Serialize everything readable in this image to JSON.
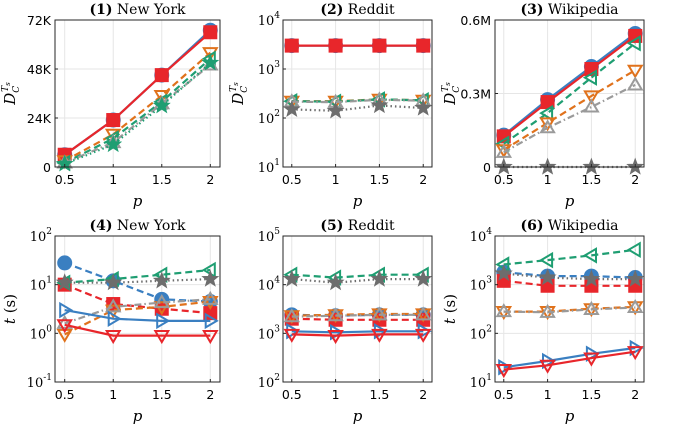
{
  "xlabel": "p",
  "colors": {
    "blue": "#3a7fc1",
    "red": "#e8262b",
    "orange": "#e0721c",
    "green": "#1f9e72",
    "gray": "#9a9a9a",
    "dark": "#6d6d6d"
  },
  "panels": [
    {
      "number": "(1)",
      "name": "New York",
      "ylabel": "D_C^{T_s}",
      "yscale": "linear",
      "ylim": [
        0,
        72000
      ],
      "yticks": [
        "0",
        "24K",
        "48K",
        "72K"
      ],
      "ytick_values": [
        0,
        24000,
        48000,
        72000
      ],
      "xticks": [
        "0.5",
        "1",
        "1.5",
        "2"
      ],
      "chart_data": {
        "type": "line",
        "x": [
          0.5,
          1,
          1.5,
          2
        ],
        "series": [
          {
            "values": [
              6000,
              23000,
              45000,
              67000
            ],
            "color": "blue",
            "marker": "circle",
            "dash": "solid"
          },
          {
            "values": [
              6000,
              23000,
              45000,
              66000
            ],
            "color": "red",
            "marker": "square",
            "dash": "solid"
          },
          {
            "values": [
              3000,
              16000,
              35000,
              56000
            ],
            "color": "orange",
            "marker": "tri-down",
            "dash": "dashed"
          },
          {
            "values": [
              2000,
              14000,
              32000,
              53000
            ],
            "color": "green",
            "marker": "tri-left",
            "dash": "dashed"
          },
          {
            "values": [
              2000,
              12000,
              31000,
              50000
            ],
            "color": "gray",
            "marker": "tri-up",
            "dash": "dashdot"
          },
          {
            "values": [
              1500,
              11000,
              30000,
              51000
            ],
            "color": "green",
            "marker": "star",
            "dash": "dotted"
          }
        ]
      }
    },
    {
      "number": "(2)",
      "name": "Reddit",
      "ylabel": "D_C^{T_s}",
      "yscale": "log",
      "ylim": [
        10,
        10000
      ],
      "yticks": [
        "10",
        "10",
        "10",
        "10"
      ],
      "ytick_exps": [
        "1",
        "2",
        "3",
        "4"
      ],
      "ytick_values": [
        10,
        100,
        1000,
        10000
      ],
      "xticks": [
        "0.5",
        "1",
        "1.5",
        "2"
      ],
      "chart_data": {
        "type": "line",
        "x": [
          0.5,
          1,
          1.5,
          2
        ],
        "series": [
          {
            "values": [
              3000,
              3000,
              3000,
              3000
            ],
            "color": "blue",
            "marker": "circle",
            "dash": "solid"
          },
          {
            "values": [
              3000,
              3000,
              3000,
              3000
            ],
            "color": "red",
            "marker": "square",
            "dash": "solid"
          },
          {
            "values": [
              220,
              220,
              240,
              230
            ],
            "color": "orange",
            "marker": "tri-down",
            "dash": "dashed"
          },
          {
            "values": [
              220,
              215,
              240,
              230
            ],
            "color": "green",
            "marker": "tri-left",
            "dash": "dashed"
          },
          {
            "values": [
              215,
              210,
              235,
              225
            ],
            "color": "gray",
            "marker": "tri-up",
            "dash": "dashdot"
          },
          {
            "values": [
              150,
              140,
              180,
              160
            ],
            "color": "dark",
            "marker": "star",
            "dash": "dotted"
          }
        ]
      }
    },
    {
      "number": "(3)",
      "name": "Wikipedia",
      "ylabel": "D_C^{T_s}",
      "yscale": "linear",
      "ylim": [
        0,
        600000
      ],
      "yticks": [
        "0",
        "0.3M",
        "0.6M"
      ],
      "ytick_values": [
        0,
        300000,
        600000
      ],
      "xticks": [
        "0.5",
        "1",
        "1.5",
        "2"
      ],
      "chart_data": {
        "type": "line",
        "x": [
          0.5,
          1,
          1.5,
          2
        ],
        "series": [
          {
            "values": [
              130000,
              275000,
              410000,
              545000
            ],
            "color": "blue",
            "marker": "circle",
            "dash": "solid"
          },
          {
            "values": [
              125000,
              265000,
              400000,
              535000
            ],
            "color": "red",
            "marker": "square",
            "dash": "solid"
          },
          {
            "values": [
              95000,
              220000,
              365000,
              505000
            ],
            "color": "green",
            "marker": "tri-left",
            "dash": "dashed"
          },
          {
            "values": [
              70000,
              180000,
              290000,
              395000
            ],
            "color": "orange",
            "marker": "tri-down",
            "dash": "dashed"
          },
          {
            "values": [
              60000,
              160000,
              245000,
              335000
            ],
            "color": "gray",
            "marker": "tri-up",
            "dash": "dashdot"
          },
          {
            "values": [
              0,
              0,
              0,
              0
            ],
            "color": "dark",
            "marker": "star",
            "dash": "dotted"
          }
        ]
      }
    },
    {
      "number": "(4)",
      "name": "New York",
      "ylabel": "t (s)",
      "yscale": "log",
      "ylim": [
        0.1,
        100
      ],
      "yticks": [
        "10",
        "10",
        "10",
        "10"
      ],
      "ytick_exps": [
        "-1",
        "0",
        "1",
        "2"
      ],
      "ytick_values": [
        0.1,
        1,
        10,
        100
      ],
      "xticks": [
        "0.5",
        "1",
        "1.5",
        "2"
      ],
      "chart_data": {
        "type": "line",
        "x": [
          0.5,
          1,
          1.5,
          2
        ],
        "series": [
          {
            "values": [
              28,
              12,
              5,
              4.5
            ],
            "color": "blue",
            "marker": "circle",
            "dash": "dashed"
          },
          {
            "values": [
              10,
              4,
              3.2,
              2.6
            ],
            "color": "red",
            "marker": "square",
            "dash": "dashed"
          },
          {
            "values": [
              0.95,
              3,
              3.5,
              4.5
            ],
            "color": "orange",
            "marker": "tri-down",
            "dash": "dashed"
          },
          {
            "values": [
              11,
              13,
              16,
              20
            ],
            "color": "green",
            "marker": "tri-left",
            "dash": "dashed"
          },
          {
            "values": [
              1.6,
              3.5,
              4.3,
              5
            ],
            "color": "gray",
            "marker": "tri-up",
            "dash": "dashdot"
          },
          {
            "values": [
              11,
              11,
              12,
              13
            ],
            "color": "dark",
            "marker": "star",
            "dash": "dotted"
          },
          {
            "values": [
              3,
              2,
              1.8,
              1.8
            ],
            "color": "blue",
            "marker": "tri-right",
            "dash": "solid"
          },
          {
            "values": [
              1.5,
              0.9,
              0.9,
              0.9
            ],
            "color": "red",
            "marker": "tri-down",
            "dash": "solid"
          }
        ]
      }
    },
    {
      "number": "(5)",
      "name": "Reddit",
      "ylabel": "",
      "yscale": "log",
      "ylim": [
        100,
        100000
      ],
      "yticks": [
        "10",
        "10",
        "10",
        "10"
      ],
      "ytick_exps": [
        "2",
        "3",
        "4",
        "5"
      ],
      "ytick_values": [
        100,
        1000,
        10000,
        100000
      ],
      "xticks": [
        "0.5",
        "1",
        "1.5",
        "2"
      ],
      "chart_data": {
        "type": "line",
        "x": [
          0.5,
          1,
          1.5,
          2
        ],
        "series": [
          {
            "values": [
              2400,
              2300,
              2400,
              2400
            ],
            "color": "blue",
            "marker": "circle",
            "dash": "dashed"
          },
          {
            "values": [
              2000,
              1900,
              1900,
              1900
            ],
            "color": "red",
            "marker": "square",
            "dash": "dashed"
          },
          {
            "values": [
              2300,
              2400,
              2500,
              2500
            ],
            "color": "orange",
            "marker": "tri-down",
            "dash": "dashed"
          },
          {
            "values": [
              16000,
              14000,
              16000,
              16000
            ],
            "color": "green",
            "marker": "tri-left",
            "dash": "dashed"
          },
          {
            "values": [
              2200,
              2300,
              2400,
              2400
            ],
            "color": "gray",
            "marker": "tri-up",
            "dash": "dashdot"
          },
          {
            "values": [
              13000,
              11000,
              13000,
              13000
            ],
            "color": "dark",
            "marker": "star",
            "dash": "dotted"
          },
          {
            "values": [
              1100,
              1050,
              1100,
              1100
            ],
            "color": "blue",
            "marker": "tri-right",
            "dash": "solid"
          },
          {
            "values": [
              950,
              900,
              950,
              950
            ],
            "color": "red",
            "marker": "tri-down",
            "dash": "solid"
          }
        ]
      }
    },
    {
      "number": "(6)",
      "name": "Wikipedia",
      "ylabel": "t (s)",
      "yscale": "log",
      "ylim": [
        10,
        10000
      ],
      "yticks": [
        "10",
        "10",
        "10",
        "10"
      ],
      "ytick_exps": [
        "1",
        "2",
        "3",
        "4"
      ],
      "ytick_values": [
        10,
        100,
        1000,
        10000
      ],
      "xticks": [
        "0.5",
        "1",
        "1.5",
        "2"
      ],
      "chart_data": {
        "type": "line",
        "x": [
          0.5,
          1,
          1.5,
          2
        ],
        "series": [
          {
            "values": [
              1800,
              1500,
              1500,
              1400
            ],
            "color": "blue",
            "marker": "circle",
            "dash": "dashed"
          },
          {
            "values": [
              1200,
              950,
              950,
              950
            ],
            "color": "red",
            "marker": "square",
            "dash": "dashed"
          },
          {
            "values": [
              280,
              280,
              320,
              350
            ],
            "color": "orange",
            "marker": "tri-down",
            "dash": "dashed"
          },
          {
            "values": [
              2600,
              3200,
              4000,
              5200
            ],
            "color": "green",
            "marker": "tri-left",
            "dash": "dashed"
          },
          {
            "values": [
              280,
              270,
              310,
              340
            ],
            "color": "gray",
            "marker": "tri-up",
            "dash": "dashdot"
          },
          {
            "values": [
              1700,
              1400,
              1300,
              1300
            ],
            "color": "dark",
            "marker": "star",
            "dash": "dotted"
          },
          {
            "values": [
              20,
              27,
              38,
              50
            ],
            "color": "blue",
            "marker": "tri-right",
            "dash": "solid"
          },
          {
            "values": [
              18,
              22,
              31,
              42
            ],
            "color": "red",
            "marker": "tri-down",
            "dash": "solid"
          }
        ]
      }
    }
  ]
}
